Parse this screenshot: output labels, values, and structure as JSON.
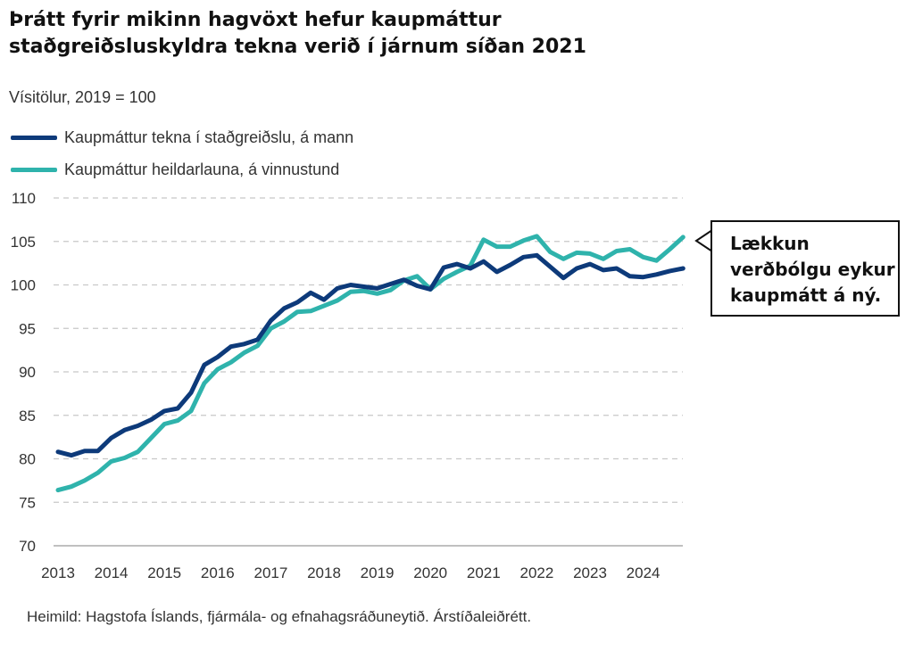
{
  "header": {
    "title": "Þrátt fyrir mikinn hagvöxt hefur kaupmáttur staðgreiðsluskyldra tekna verið í járnum síðan 2021",
    "subtitle": "Vísitölur, 2019 = 100"
  },
  "legend": [
    {
      "label": "Kaupmáttur tekna í staðgreiðslu, á mann",
      "color": "#0d3a7a"
    },
    {
      "label": "Kaupmáttur heildarlauna, á vinnustund",
      "color": "#2fb3ac"
    }
  ],
  "callout": {
    "text": "Lækkun verðbólgu eykur kaupmátt á ný."
  },
  "footer": {
    "source": "Heimild: Hagstofa Íslands, fjármála- og efnahagsráðuneytið. Árstíðaleiðrétt."
  },
  "chart_data": {
    "type": "line",
    "title": "Þrátt fyrir mikinn hagvöxt hefur kaupmáttur staðgreiðsluskyldra tekna verið í járnum síðan 2021",
    "ylabel": "Vísitölur, 2019 = 100",
    "xlabel": "",
    "ylim": [
      70,
      110
    ],
    "yticks": [
      70,
      75,
      80,
      85,
      90,
      95,
      100,
      105,
      110
    ],
    "year_labels": [
      "2013",
      "2014",
      "2015",
      "2016",
      "2017",
      "2018",
      "2019",
      "2020",
      "2021",
      "2022",
      "2023",
      "2024"
    ],
    "x_start": "2013Q1",
    "grid": true,
    "legend_position": "top-left",
    "series": [
      {
        "name": "Kaupmáttur tekna í staðgreiðslu, á mann",
        "color": "#0d3a7a",
        "values": [
          80.8,
          80.4,
          80.9,
          80.9,
          82.4,
          83.3,
          83.8,
          84.5,
          85.5,
          85.8,
          87.6,
          90.8,
          91.7,
          92.9,
          93.2,
          93.7,
          95.9,
          97.3,
          98.0,
          99.1,
          98.3,
          99.6,
          100.0,
          99.8,
          99.6,
          100.1,
          100.6,
          99.9,
          99.5,
          102.0,
          102.4,
          101.9,
          102.7,
          101.5,
          102.3,
          103.2,
          103.4,
          102.1,
          100.8,
          101.9,
          102.4,
          101.7,
          101.9,
          101.0,
          100.9,
          101.2,
          101.6,
          101.9
        ]
      },
      {
        "name": "Kaupmáttur heildarlauna, á vinnustund",
        "color": "#2fb3ac",
        "values": [
          76.4,
          76.8,
          77.5,
          78.4,
          79.7,
          80.1,
          80.8,
          82.4,
          84.0,
          84.4,
          85.5,
          88.7,
          90.3,
          91.1,
          92.2,
          93.0,
          95.0,
          95.8,
          96.9,
          97.0,
          97.6,
          98.2,
          99.2,
          99.3,
          99.0,
          99.4,
          100.5,
          101.0,
          99.5,
          100.7,
          101.5,
          102.2,
          105.2,
          104.4,
          104.4,
          105.1,
          105.6,
          103.8,
          103.0,
          103.7,
          103.6,
          103.0,
          103.9,
          104.1,
          103.2,
          102.8,
          104.1,
          105.5
        ]
      }
    ]
  }
}
